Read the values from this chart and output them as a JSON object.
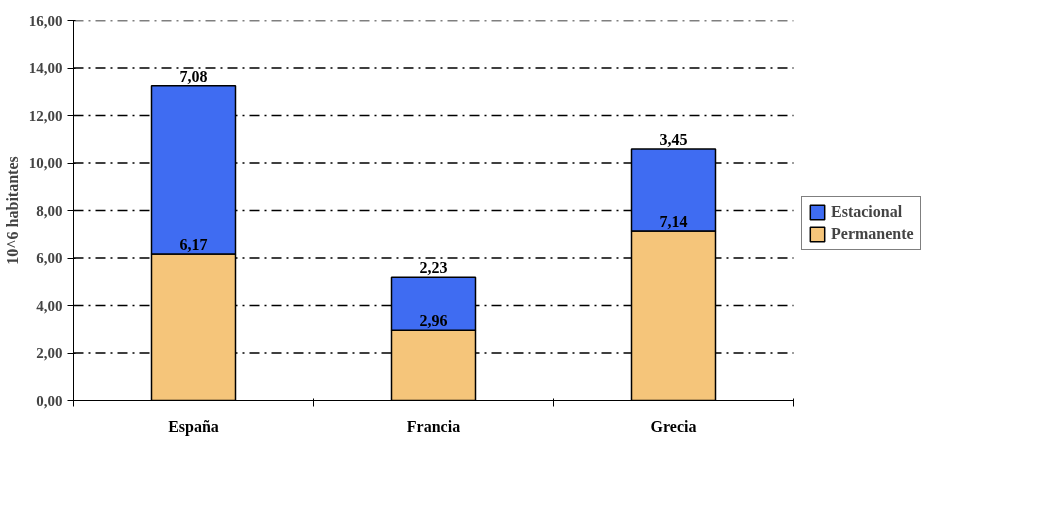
{
  "chart_data": {
    "type": "bar",
    "stacked": true,
    "ylabel": "10^6 habitantes",
    "categories": [
      "España",
      "Francia",
      "Grecia"
    ],
    "series": [
      {
        "name": "Permanente",
        "color": "#f5c57a",
        "values": [
          6.17,
          2.96,
          7.14
        ],
        "value_labels": [
          "6,17",
          "2,96",
          "7,14"
        ]
      },
      {
        "name": "Estacional",
        "color": "#3f6cf2",
        "values": [
          7.08,
          2.23,
          3.45
        ],
        "value_labels": [
          "7,08",
          "2,23",
          "3,45"
        ]
      }
    ],
    "ylim": [
      0,
      16
    ],
    "yticks": [
      {
        "value": 0,
        "label": "0,00"
      },
      {
        "value": 2,
        "label": "2,00"
      },
      {
        "value": 4,
        "label": "4,00"
      },
      {
        "value": 6,
        "label": "6,00"
      },
      {
        "value": 8,
        "label": "8,00"
      },
      {
        "value": 10,
        "label": "10,00"
      },
      {
        "value": 12,
        "label": "12,00"
      },
      {
        "value": 14,
        "label": "14,00"
      },
      {
        "value": 16,
        "label": "16,00"
      }
    ],
    "grid": "y",
    "legend": "right"
  }
}
